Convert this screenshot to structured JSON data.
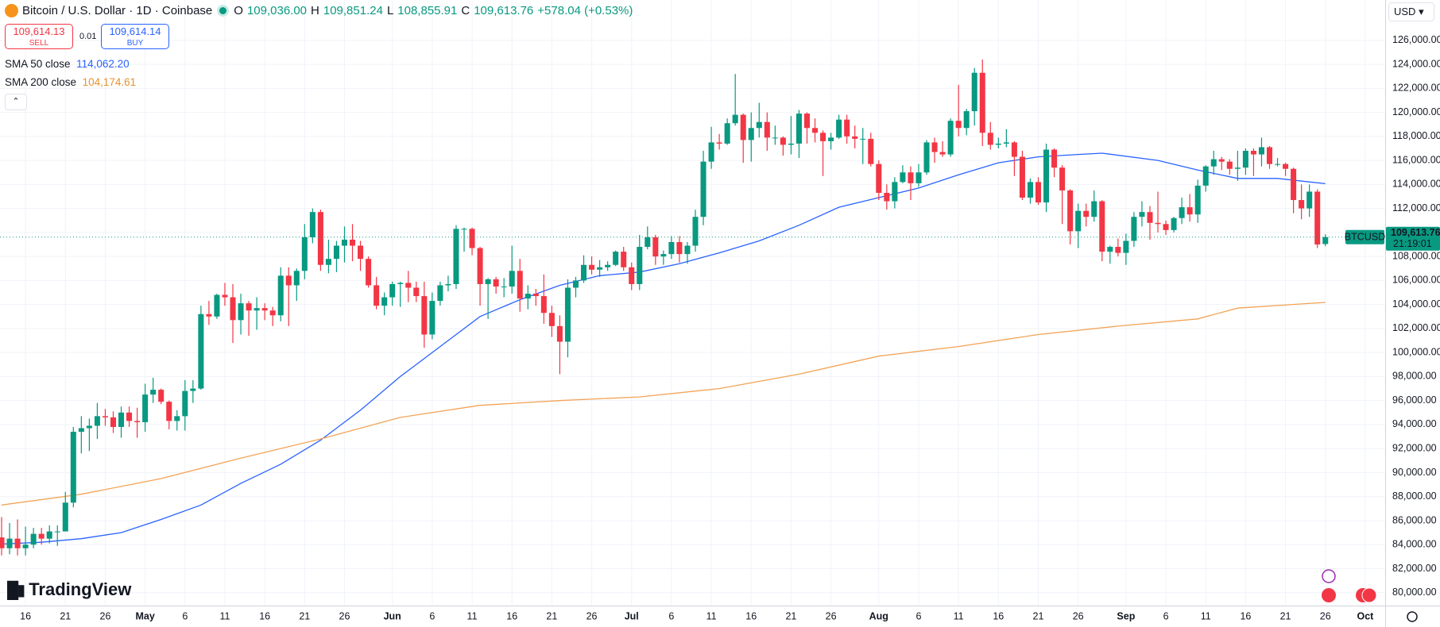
{
  "header": {
    "title": "Bitcoin / U.S. Dollar · 1D · Coinbase",
    "open_key": "O",
    "open": "109,036.00",
    "high_key": "H",
    "high": "109,851.24",
    "low_key": "L",
    "low": "108,855.91",
    "close_key": "C",
    "close": "109,613.76",
    "change": "+578.04 (+0.53%)",
    "sell_price": "109,614.13",
    "sell": "SELL",
    "spread": "0.01",
    "buy_price": "109,614.14",
    "buy": "BUY",
    "currency": "USD",
    "logo": "TradingView"
  },
  "chart_data": {
    "type": "candlestick",
    "open": [
      84600,
      83700,
      84500,
      83700,
      84000,
      84900,
      84500,
      85100,
      85100,
      87500,
      93400,
      93700,
      93900,
      94700,
      94600,
      93800,
      95000,
      94300,
      94200,
      96500,
      96900,
      95900,
      94300,
      94700,
      96800,
      97000,
      103200,
      103000,
      104800,
      104600,
      102700,
      104100,
      103500,
      103700,
      103500,
      103100,
      106400,
      105600,
      106800,
      109600,
      111700,
      107300,
      107800,
      108900,
      109400,
      108900,
      107800,
      105600,
      103900,
      104600,
      105700,
      105800,
      105400,
      104700,
      101500,
      104300,
      105600,
      105700,
      110300,
      110300,
      108700,
      105700,
      106100,
      105500,
      105500,
      106800,
      104500,
      104900,
      104700,
      103300,
      102200,
      100900,
      105400,
      106000,
      107300,
      106900,
      107100,
      107300,
      108400,
      107100,
      105700,
      108800,
      109600,
      108000,
      108200,
      109200,
      108200,
      108900,
      111300,
      115900,
      117500,
      117400,
      119100,
      119800,
      117700,
      118700,
      119200,
      117900,
      117900,
      117300,
      117400,
      119900,
      118700,
      118300,
      117600,
      117900,
      119400,
      118000,
      117800,
      117800,
      115700,
      113300,
      112600,
      114200,
      115000,
      114100,
      115000,
      117500,
      116700,
      116500,
      119300,
      118700,
      120100,
      123300,
      118300,
      117300,
      117400,
      117500,
      116300,
      112900,
      114200,
      112500,
      116900,
      115400,
      113500,
      110100,
      111800,
      111300,
      112600,
      108400,
      108800,
      108300,
      109300,
      111300,
      111700,
      110800,
      110700,
      110200,
      111200,
      112100,
      111500,
      113900,
      115500,
      116100,
      115900,
      115300,
      115400,
      116800,
      116500,
      117100,
      115700,
      115700,
      115300,
      112700,
      112000,
      113400,
      109036
    ],
    "high": [
      86300,
      85800,
      86100,
      85500,
      85400,
      85400,
      85600,
      85600,
      88400,
      93800,
      94700,
      94500,
      95800,
      95300,
      95100,
      95500,
      95500,
      95400,
      97400,
      97900,
      97000,
      96000,
      95200,
      97700,
      97700,
      103900,
      104300,
      104900,
      105800,
      105700,
      104900,
      104300,
      104600,
      104100,
      103800,
      107100,
      107100,
      107000,
      110700,
      112000,
      111900,
      109400,
      109300,
      110500,
      110700,
      109300,
      108000,
      106300,
      105000,
      105900,
      105900,
      106800,
      105900,
      105900,
      105000,
      105900,
      106400,
      110600,
      110400,
      110400,
      108800,
      106200,
      106300,
      106200,
      108900,
      107800,
      105600,
      105300,
      106500,
      103900,
      103100,
      106100,
      106300,
      108100,
      108000,
      107700,
      107600,
      108500,
      108800,
      107500,
      109800,
      110500,
      109800,
      108500,
      109700,
      109700,
      109200,
      111900,
      116800,
      118800,
      118200,
      119500,
      123200,
      119900,
      120000,
      120800,
      120000,
      118900,
      118000,
      119700,
      120200,
      120000,
      119500,
      118500,
      118300,
      119800,
      119800,
      118900,
      118700,
      118300,
      116000,
      114000,
      114600,
      115600,
      115500,
      115700,
      117700,
      117900,
      117600,
      119500,
      122300,
      120300,
      123700,
      124400,
      119200,
      117900,
      118600,
      117600,
      116800,
      114500,
      114600,
      117400,
      117000,
      115600,
      113600,
      112400,
      112400,
      113500,
      112700,
      108900,
      109500,
      109900,
      111700,
      112600,
      112200,
      113400,
      111000,
      111300,
      112900,
      113200,
      114400,
      115600,
      116800,
      116300,
      116100,
      116800,
      117000,
      117000,
      117900,
      117200,
      116200,
      115800,
      115400,
      114000,
      114000,
      113600,
      109851.24
    ],
    "low": [
      83100,
      83200,
      83100,
      83100,
      83700,
      84000,
      84100,
      83900,
      85100,
      87100,
      91600,
      91800,
      92800,
      93900,
      93300,
      92900,
      93800,
      92900,
      93400,
      95800,
      95700,
      93600,
      93500,
      93500,
      95800,
      96900,
      102300,
      102800,
      103900,
      100800,
      101500,
      101400,
      101900,
      102700,
      102200,
      102600,
      102200,
      104300,
      106100,
      109100,
      106800,
      106600,
      106700,
      107500,
      107600,
      106800,
      105400,
      103600,
      103100,
      103900,
      103800,
      104200,
      104200,
      100400,
      101100,
      103900,
      105100,
      105300,
      108400,
      108100,
      103900,
      102800,
      104900,
      104600,
      104900,
      103400,
      103600,
      103900,
      102400,
      101300,
      98200,
      99600,
      104600,
      105800,
      106500,
      106300,
      106800,
      107200,
      106800,
      105200,
      105200,
      108600,
      107300,
      107300,
      107800,
      107500,
      107400,
      108400,
      110600,
      115300,
      116900,
      117300,
      118900,
      115800,
      115900,
      117900,
      116800,
      117300,
      116400,
      116500,
      116200,
      117400,
      117500,
      114700,
      116900,
      117800,
      117400,
      117000,
      115700,
      115500,
      112700,
      111900,
      112000,
      114100,
      112700,
      113800,
      114800,
      115800,
      116300,
      116300,
      118000,
      118100,
      118900,
      117200,
      116900,
      117000,
      117100,
      114700,
      112700,
      112400,
      112300,
      111700,
      114600,
      110700,
      109000,
      108700,
      110500,
      110900,
      107600,
      107400,
      108000,
      107300,
      108800,
      110500,
      109400,
      110000,
      109800,
      110000,
      110700,
      110900,
      110800,
      113400,
      114800,
      115200,
      114800,
      114300,
      114800,
      114700,
      115500,
      115300,
      115500,
      114700,
      111600,
      111100,
      111300,
      108700,
      108855.91
    ],
    "close": [
      83700,
      84500,
      83700,
      84000,
      84900,
      84500,
      85100,
      85100,
      87500,
      93400,
      93700,
      93900,
      94700,
      94600,
      93800,
      95000,
      94300,
      94200,
      96500,
      96900,
      95900,
      94300,
      94700,
      96800,
      97000,
      103200,
      103000,
      104800,
      104600,
      102700,
      104100,
      103500,
      103700,
      103500,
      103100,
      106400,
      105600,
      106800,
      109600,
      111700,
      107300,
      107800,
      108900,
      109400,
      108900,
      107800,
      105600,
      103900,
      104600,
      105700,
      105800,
      105400,
      104700,
      101500,
      104300,
      105600,
      105700,
      110300,
      110300,
      108700,
      105700,
      106100,
      105500,
      105500,
      106800,
      104500,
      104900,
      104700,
      103300,
      102200,
      100900,
      105400,
      106000,
      107300,
      106900,
      107100,
      107300,
      108400,
      107100,
      105700,
      108800,
      109600,
      108000,
      108200,
      109200,
      108200,
      108900,
      111300,
      115900,
      117500,
      117400,
      119100,
      119800,
      117700,
      118700,
      119200,
      117900,
      117900,
      117300,
      117400,
      119900,
      118700,
      118300,
      117600,
      117900,
      119400,
      118000,
      117800,
      117800,
      115700,
      113300,
      112600,
      114200,
      115000,
      114100,
      115000,
      117500,
      116700,
      116500,
      119300,
      118700,
      120100,
      123300,
      118300,
      117300,
      117400,
      117500,
      116300,
      112900,
      114200,
      112500,
      116900,
      115400,
      113500,
      110100,
      111800,
      111300,
      112600,
      108400,
      108800,
      108300,
      109300,
      111300,
      111700,
      110800,
      110700,
      110200,
      111200,
      112100,
      111500,
      113900,
      115500,
      116100,
      115900,
      115300,
      115400,
      116800,
      116500,
      117100,
      115700,
      115700,
      115300,
      112700,
      112000,
      113400,
      109000,
      109613.76
    ],
    "up_color": "#089981",
    "down_color": "#f23645",
    "series": [
      {
        "name": "SMA 50 close",
        "color": "#2962ff",
        "last_label": "114,062.20",
        "x": [
          0,
          5,
          10,
          15,
          20,
          25,
          30,
          35,
          40,
          45,
          50,
          55,
          60,
          65,
          70,
          75,
          80,
          85,
          90,
          95,
          100,
          105,
          110,
          115,
          120,
          125,
          130,
          135,
          138,
          145,
          150,
          155,
          160,
          166
        ],
        "values": [
          84050,
          84200,
          84500,
          85000,
          86100,
          87300,
          89100,
          90700,
          92700,
          95200,
          98000,
          100500,
          103000,
          104400,
          105600,
          106400,
          106700,
          107400,
          108300,
          109300,
          110600,
          112100,
          112900,
          113700,
          114800,
          115800,
          116300,
          116500,
          116600,
          116000,
          115200,
          114500,
          114500,
          114062.2
        ]
      },
      {
        "name": "SMA 200 close",
        "color": "#f2a356",
        "last_label": "104,174.61",
        "x": [
          0,
          10,
          20,
          30,
          40,
          50,
          60,
          70,
          80,
          90,
          100,
          110,
          120,
          130,
          140,
          150,
          155,
          166
        ],
        "values": [
          87300,
          88200,
          89500,
          91200,
          92800,
          94600,
          95600,
          96000,
          96300,
          97000,
          98200,
          99700,
          100500,
          101500,
          102200,
          102800,
          103700,
          104174.61
        ]
      }
    ],
    "last_price": {
      "value": 109613.76,
      "label": "109,613.76"
    },
    "symbol": "BTCUSD",
    "countdown": "21:19:01",
    "xlim": [
      -0.2,
      173.5
    ],
    "xticks": [
      {
        "value": 3,
        "label": "16"
      },
      {
        "value": 8,
        "label": "21"
      },
      {
        "value": 13,
        "label": "26"
      },
      {
        "value": 18,
        "label": "May"
      },
      {
        "value": 23,
        "label": "6"
      },
      {
        "value": 28,
        "label": "11"
      },
      {
        "value": 33,
        "label": "16"
      },
      {
        "value": 38,
        "label": "21"
      },
      {
        "value": 43,
        "label": "26"
      },
      {
        "value": 49,
        "label": "Jun"
      },
      {
        "value": 54,
        "label": "6"
      },
      {
        "value": 59,
        "label": "11"
      },
      {
        "value": 64,
        "label": "16"
      },
      {
        "value": 69,
        "label": "21"
      },
      {
        "value": 74,
        "label": "26"
      },
      {
        "value": 79,
        "label": "Jul"
      },
      {
        "value": 84,
        "label": "6"
      },
      {
        "value": 89,
        "label": "11"
      },
      {
        "value": 94,
        "label": "16"
      },
      {
        "value": 99,
        "label": "21"
      },
      {
        "value": 104,
        "label": "26"
      },
      {
        "value": 110,
        "label": "Aug"
      },
      {
        "value": 115,
        "label": "6"
      },
      {
        "value": 120,
        "label": "11"
      },
      {
        "value": 125,
        "label": "16"
      },
      {
        "value": 130,
        "label": "21"
      },
      {
        "value": 135,
        "label": "26"
      },
      {
        "value": 141,
        "label": "Sep"
      },
      {
        "value": 146,
        "label": "6"
      },
      {
        "value": 151,
        "label": "11"
      },
      {
        "value": 156,
        "label": "16"
      },
      {
        "value": 161,
        "label": "21"
      },
      {
        "value": 166,
        "label": "26"
      },
      {
        "value": 171,
        "label": "Oct"
      }
    ],
    "ylim": [
      78925,
      129360
    ],
    "yticks": [
      {
        "value": 80000,
        "label": "80,000.00"
      },
      {
        "value": 82000,
        "label": "82,000.00"
      },
      {
        "value": 84000,
        "label": "84,000.00"
      },
      {
        "value": 86000,
        "label": "86,000.00"
      },
      {
        "value": 88000,
        "label": "88,000.00"
      },
      {
        "value": 90000,
        "label": "90,000.00"
      },
      {
        "value": 92000,
        "label": "92,000.00"
      },
      {
        "value": 94000,
        "label": "94,000.00"
      },
      {
        "value": 96000,
        "label": "96,000.00"
      },
      {
        "value": 98000,
        "label": "98,000.00"
      },
      {
        "value": 100000,
        "label": "100,000.00"
      },
      {
        "value": 102000,
        "label": "102,000.00"
      },
      {
        "value": 104000,
        "label": "104,000.00"
      },
      {
        "value": 106000,
        "label": "106,000.00"
      },
      {
        "value": 108000,
        "label": "108,000.00"
      },
      {
        "value": 110000,
        "label": "110,000.00"
      },
      {
        "value": 112000,
        "label": "112,000.00"
      },
      {
        "value": 114000,
        "label": "114,000.00"
      },
      {
        "value": 116000,
        "label": "116,000.00"
      },
      {
        "value": 118000,
        "label": "118,000.00"
      },
      {
        "value": 120000,
        "label": "120,000.00"
      },
      {
        "value": 122000,
        "label": "122,000.00"
      },
      {
        "value": 124000,
        "label": "124,000.00"
      },
      {
        "value": 126000,
        "label": "126,000.00"
      }
    ],
    "grid": true
  }
}
